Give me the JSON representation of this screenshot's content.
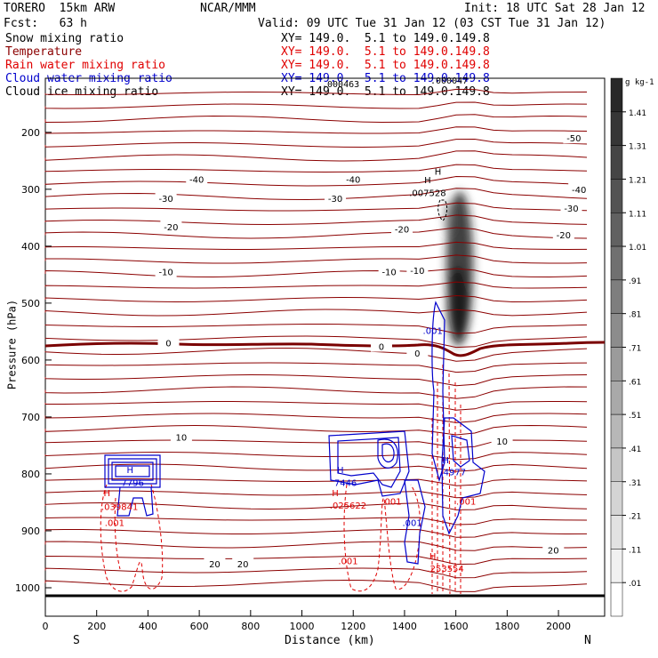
{
  "header": {
    "model": "TORERO  15km ARW",
    "center": "NCAR/MMM",
    "init": "Init: 18 UTC Sat 28 Jan 12",
    "fcst": "Fcst:   63 h",
    "valid": "Valid: 09 UTC Tue 31 Jan 12 (03 CST Tue 31 Jan 12)",
    "overlapping_numbers": [
      ".000463",
      ".000047"
    ]
  },
  "fields": [
    {
      "label": "Snow mixing ratio",
      "xy": "XY= 149.0.  5.1 to 149.0.149.8",
      "color": "#000000"
    },
    {
      "label": "Temperature",
      "xy": "XY= 149.0.  5.1 to 149.0.149.8",
      "color": "#8b0000"
    },
    {
      "label": "Rain water mixing ratio",
      "xy": "XY= 149.0.  5.1 to 149.0.149.8",
      "color": "#e00000"
    },
    {
      "label": "Cloud water mixing ratio",
      "xy": "XY= 149.0.  5.1 to 149.0.149.8",
      "color": "#0000cc"
    },
    {
      "label": "Cloud ice mixing ratio",
      "xy": "XY= 149.0.  5.1 to 149.0.149.8",
      "color": "#000000"
    }
  ],
  "chart_data": {
    "type": "heatmap",
    "xlabel": "Distance (km)",
    "ylabel": "Pressure (hPa)",
    "xlim": [
      0,
      2180
    ],
    "ylim": [
      1050,
      105
    ],
    "x_ticks": [
      0,
      200,
      400,
      600,
      800,
      1000,
      1200,
      1400,
      1600,
      1800,
      2000
    ],
    "y_ticks": [
      200,
      300,
      400,
      500,
      600,
      700,
      800,
      900,
      1000
    ],
    "x_end_labels": {
      "left": "S",
      "right": "N"
    },
    "colorbar": {
      "unit": "g kg-1",
      "ticks": [
        "1.41",
        "1.31",
        "1.21",
        "1.11",
        "1.01",
        ".91",
        ".81",
        ".71",
        ".61",
        ".51",
        ".41",
        ".31",
        ".21",
        ".11",
        ".01"
      ]
    },
    "temperature_labels": [
      {
        "x": 2060,
        "p": 210,
        "text": "-50"
      },
      {
        "x": 590,
        "p": 282,
        "text": "-40"
      },
      {
        "x": 1200,
        "p": 282,
        "text": "-40"
      },
      {
        "x": 2080,
        "p": 300,
        "text": "-40"
      },
      {
        "x": 470,
        "p": 316,
        "text": "-30"
      },
      {
        "x": 1130,
        "p": 316,
        "text": "-30"
      },
      {
        "x": 2050,
        "p": 333,
        "text": "-30"
      },
      {
        "x": 490,
        "p": 366,
        "text": "-20"
      },
      {
        "x": 1390,
        "p": 370,
        "text": "-20"
      },
      {
        "x": 2020,
        "p": 380,
        "text": "-20"
      },
      {
        "x": 470,
        "p": 445,
        "text": "-10"
      },
      {
        "x": 1340,
        "p": 445,
        "text": "-10"
      },
      {
        "x": 1450,
        "p": 442,
        "text": "-10"
      },
      {
        "x": 480,
        "p": 570,
        "text": "0"
      },
      {
        "x": 1310,
        "p": 576,
        "text": "0"
      },
      {
        "x": 1450,
        "p": 588,
        "text": "0"
      },
      {
        "x": 530,
        "p": 735,
        "text": "10"
      },
      {
        "x": 1780,
        "p": 742,
        "text": "10"
      },
      {
        "x": 660,
        "p": 958,
        "text": "20"
      },
      {
        "x": 770,
        "p": 958,
        "text": "20"
      },
      {
        "x": 1980,
        "p": 934,
        "text": "20"
      }
    ],
    "annotations": [
      {
        "x": 1490,
        "p": 283,
        "text": "H",
        "color": "#000000"
      },
      {
        "x": 1490,
        "p": 306,
        "text": ".007528",
        "color": "#000000"
      },
      {
        "x": 1530,
        "p": 268,
        "text": "H",
        "color": "#000000"
      },
      {
        "x": 330,
        "p": 792,
        "text": "H",
        "color": "#0000cc"
      },
      {
        "x": 340,
        "p": 815,
        "text": "7796",
        "color": "#0000cc"
      },
      {
        "x": 1150,
        "p": 792,
        "text": "H",
        "color": "#0000cc"
      },
      {
        "x": 1170,
        "p": 815,
        "text": "7446",
        "color": "#0000cc"
      },
      {
        "x": 1560,
        "p": 775,
        "text": "H",
        "color": "#0000cc"
      },
      {
        "x": 1590,
        "p": 796,
        "text": ".4977",
        "color": "#0000cc"
      },
      {
        "x": 1510,
        "p": 548,
        "text": ".001",
        "color": "#0000cc"
      },
      {
        "x": 1430,
        "p": 885,
        "text": ".001",
        "color": "#0000cc"
      },
      {
        "x": 240,
        "p": 833,
        "text": "H",
        "color": "#e00000"
      },
      {
        "x": 290,
        "p": 857,
        "text": ".039841",
        "color": "#e00000"
      },
      {
        "x": 270,
        "p": 885,
        "text": ".001",
        "color": "#e00000"
      },
      {
        "x": 1130,
        "p": 833,
        "text": "H",
        "color": "#e00000"
      },
      {
        "x": 1180,
        "p": 855,
        "text": ".025622",
        "color": "#e00000"
      },
      {
        "x": 1350,
        "p": 848,
        "text": ".001",
        "color": "#e00000"
      },
      {
        "x": 1640,
        "p": 848,
        "text": ".001",
        "color": "#e00000"
      },
      {
        "x": 1180,
        "p": 952,
        "text": ".001",
        "color": "#e00000"
      },
      {
        "x": 1510,
        "p": 944,
        "text": "H",
        "color": "#e00000"
      },
      {
        "x": 1560,
        "p": 966,
        "text": ".253554",
        "color": "#e00000"
      }
    ]
  }
}
